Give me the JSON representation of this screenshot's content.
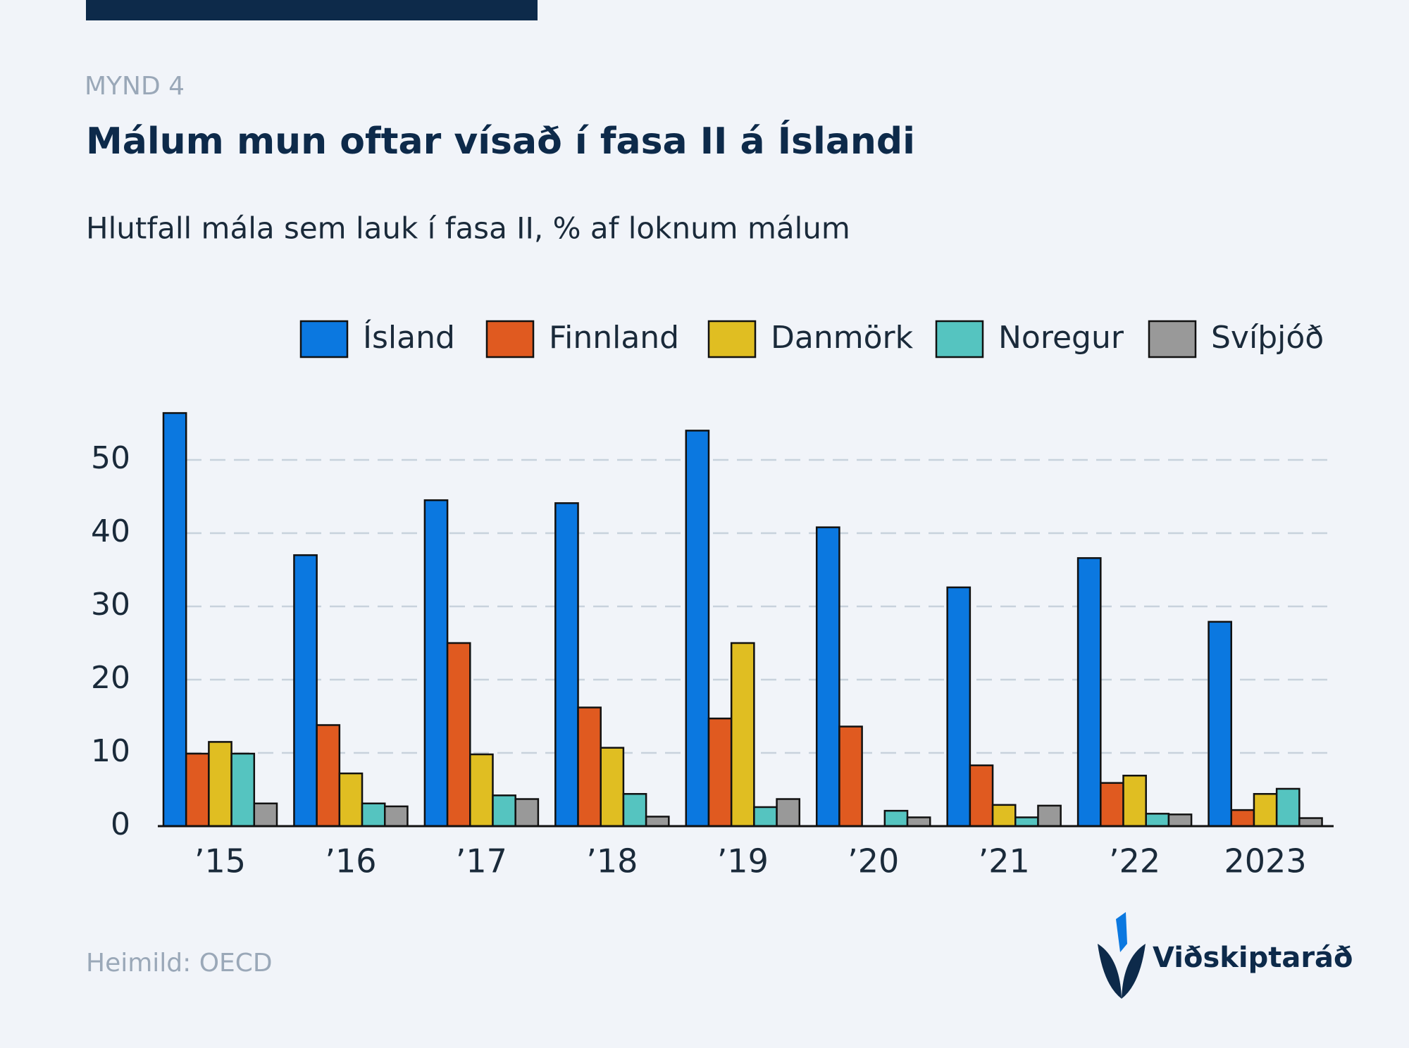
{
  "chart_data": {
    "type": "bar",
    "label": "MYND 4",
    "title": "Málum mun oftar vísað í fasa II á Íslandi",
    "subtitle": "Hlutfall mála sem lauk í fasa II, % af loknum málum",
    "source": "Heimild: OECD",
    "brand": "Viðskiptaráð",
    "categories": [
      "’15",
      "’16",
      "’17",
      "’18",
      "’19",
      "’20",
      "’21",
      "’22",
      "2023"
    ],
    "series": [
      {
        "name": "Ísland",
        "color": "#0b78e0",
        "values": [
          56.4,
          37.0,
          44.5,
          44.1,
          54.0,
          40.8,
          32.6,
          36.6,
          27.9
        ]
      },
      {
        "name": "Finnland",
        "color": "#e05a20",
        "values": [
          9.9,
          13.8,
          25.0,
          16.2,
          14.7,
          13.6,
          8.3,
          5.9,
          2.2
        ]
      },
      {
        "name": "Danmörk",
        "color": "#e0be22",
        "values": [
          11.5,
          7.2,
          9.8,
          10.7,
          25.0,
          null,
          2.9,
          6.9,
          4.4
        ]
      },
      {
        "name": "Noregur",
        "color": "#55c4c0",
        "values": [
          9.9,
          3.1,
          4.2,
          4.4,
          2.6,
          2.1,
          1.2,
          1.7,
          5.1
        ]
      },
      {
        "name": "Svíþjóð",
        "color": "#999999",
        "values": [
          3.1,
          2.7,
          3.7,
          1.3,
          3.7,
          1.2,
          2.8,
          1.6,
          1.1
        ]
      }
    ],
    "ylim": [
      0,
      57
    ],
    "yticks": [
      0,
      10,
      20,
      30,
      40,
      50
    ],
    "grid": true
  }
}
